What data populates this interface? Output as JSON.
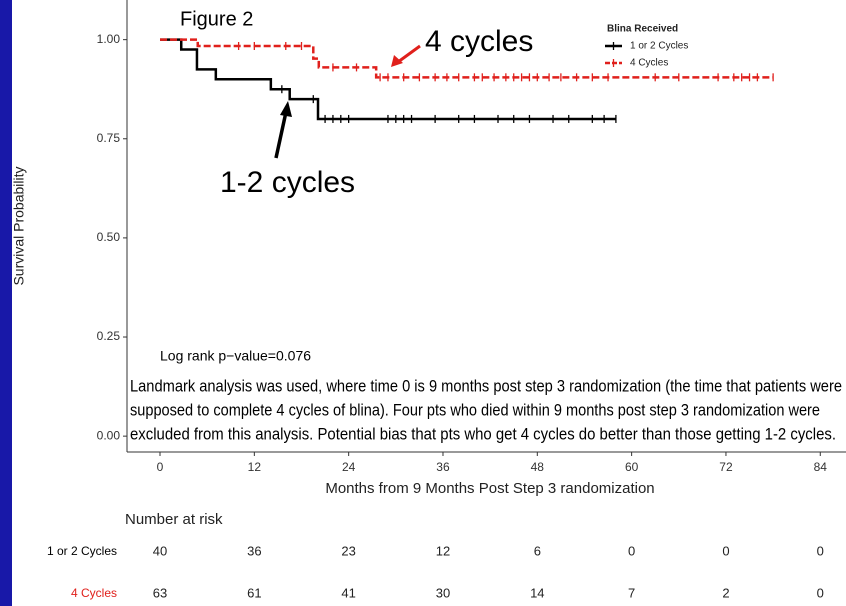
{
  "chart_data": {
    "type": "line",
    "step": true,
    "title": "Figure 2",
    "xlabel": "Months from 9 Months Post Step 3 randomization",
    "ylabel": "Survival Probability",
    "xlim": [
      -4.2,
      87.4
    ],
    "ylim": [
      -0.04,
      1.1
    ],
    "xticks": [
      0,
      12,
      24,
      36,
      48,
      60,
      72,
      84
    ],
    "yticks": [
      {
        "value": 0,
        "label": "0.00"
      },
      {
        "value": 0.25,
        "label": "0.25"
      },
      {
        "value": 0.5,
        "label": "0.50"
      },
      {
        "value": 0.75,
        "label": "0.75"
      },
      {
        "value": 1,
        "label": "1.00"
      }
    ],
    "grid": false,
    "legend": {
      "title": "Blina Received",
      "position": "upper right"
    },
    "series": [
      {
        "name": "1 or 2 Cycles",
        "color": "#000000",
        "dashed": false,
        "x": [
          0,
          2.7,
          4.7,
          7.1,
          14.1,
          16.5,
          20.1,
          58
        ],
        "values": [
          1,
          0.975,
          0.925,
          0.9,
          0.875,
          0.85,
          0.8,
          0.8
        ],
        "censored": [
          15.5,
          19.5,
          21,
          22,
          23,
          24,
          29,
          30,
          31,
          32,
          35,
          38,
          40,
          43,
          45,
          47,
          50,
          52,
          55,
          56.5,
          58
        ]
      },
      {
        "name": "4 Cycles",
        "color": "#e0201c",
        "dashed": true,
        "x": [
          0,
          4.8,
          19.5,
          20.2,
          27.5,
          78
        ],
        "values": [
          1,
          0.984,
          0.952,
          0.93,
          0.905,
          0.905
        ],
        "censored": [
          10,
          12,
          16,
          18,
          22,
          25,
          28,
          29,
          31,
          33,
          35,
          36.5,
          38,
          40,
          41,
          42.5,
          44,
          45,
          46,
          47,
          48,
          49.5,
          51,
          53,
          55,
          57,
          63,
          66,
          71,
          73,
          74,
          75,
          76,
          78
        ]
      }
    ],
    "annotations": [
      {
        "text": "4 cycles",
        "color": "#e0201c"
      },
      {
        "text": "1-2 cycles",
        "color": "#000000"
      },
      {
        "text": "Log rank p−value=0.076",
        "color": "#000000"
      }
    ],
    "note_lines": [
      "Landmark analysis was used, where time 0 is 9 months post step 3 randomization (the time that patients were",
      "supposed to complete 4 cycles of blina). Four pts who died within 9 months post step 3 randomization were",
      "excluded from this analysis. Potential bias that pts who get 4 cycles do better than those getting 1-2 cycles."
    ],
    "risk_table": {
      "title": "Number at risk",
      "rows": [
        {
          "name": "1 or 2 Cycles",
          "color": "#000000",
          "values": [
            40,
            36,
            23,
            12,
            6,
            0,
            0,
            0
          ]
        },
        {
          "name": "4 Cycles",
          "color": "#e0201c",
          "values": [
            63,
            61,
            41,
            30,
            14,
            7,
            2,
            0
          ]
        }
      ]
    }
  }
}
